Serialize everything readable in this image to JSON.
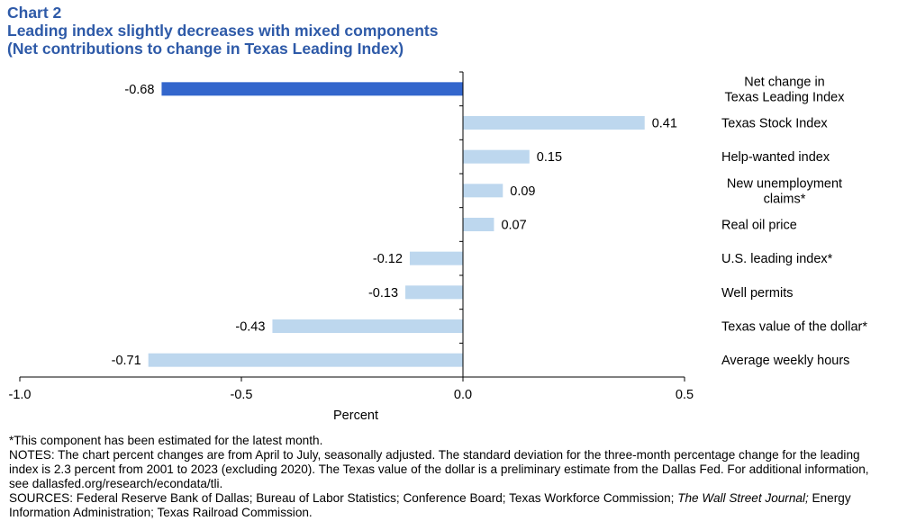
{
  "header": {
    "chart_number": "Chart 2",
    "title": "Leading index slightly decreases with mixed components",
    "subtitle": "(Net contributions to change in Texas Leading Index)"
  },
  "chart_data": {
    "type": "bar",
    "orientation": "horizontal",
    "title": "Leading index slightly decreases with mixed components",
    "subtitle": "(Net contributions to change in Texas Leading Index)",
    "xlabel": "Percent",
    "ylabel": "",
    "xlim": [
      -1.0,
      0.5
    ],
    "xticks": [
      -1.0,
      -0.5,
      0.0,
      0.5
    ],
    "xtick_labels": [
      "-1.0",
      "-0.5",
      "0.0",
      "0.5"
    ],
    "grid": false,
    "categories": [
      [
        "Net change in",
        "Texas Leading Index"
      ],
      [
        "Texas Stock Index"
      ],
      [
        "Help-wanted index"
      ],
      [
        "New unemployment",
        "claims*"
      ],
      [
        "Real oil price"
      ],
      [
        "U.S. leading index*"
      ],
      [
        "Well permits"
      ],
      [
        "Texas value of the dollar*"
      ],
      [
        "Average weekly hours"
      ]
    ],
    "values": [
      -0.68,
      0.41,
      0.15,
      0.09,
      0.07,
      -0.12,
      -0.13,
      -0.43,
      -0.71
    ],
    "value_labels": [
      "-0.68",
      "0.41",
      "0.15",
      "0.09",
      "0.07",
      "-0.12",
      "-0.13",
      "-0.43",
      "-0.71"
    ],
    "colors": [
      "#3366CC",
      "#BDD7EE",
      "#BDD7EE",
      "#BDD7EE",
      "#BDD7EE",
      "#BDD7EE",
      "#BDD7EE",
      "#BDD7EE",
      "#BDD7EE"
    ]
  },
  "notes": {
    "estimate_note": "*This component has been estimated for the latest month.",
    "notes_text": "NOTES: The chart percent changes are from April to July, seasonally adjusted. The standard deviation for the three-month percentage change for the leading index is 2.3 percent from 2001 to 2023 (excluding 2020). The Texas value of the dollar is a preliminary estimate from the Dallas Fed. For additional information, see dallasfed.org/research/econdata/tli.",
    "sources_prefix": "SOURCES: Federal Reserve Bank of Dallas; Bureau of Labor Statistics; Conference Board; Texas Workforce Commission; ",
    "sources_italic": "The Wall Street Journal;",
    "sources_suffix": " Energy Information Administration; Texas Railroad Commission."
  }
}
